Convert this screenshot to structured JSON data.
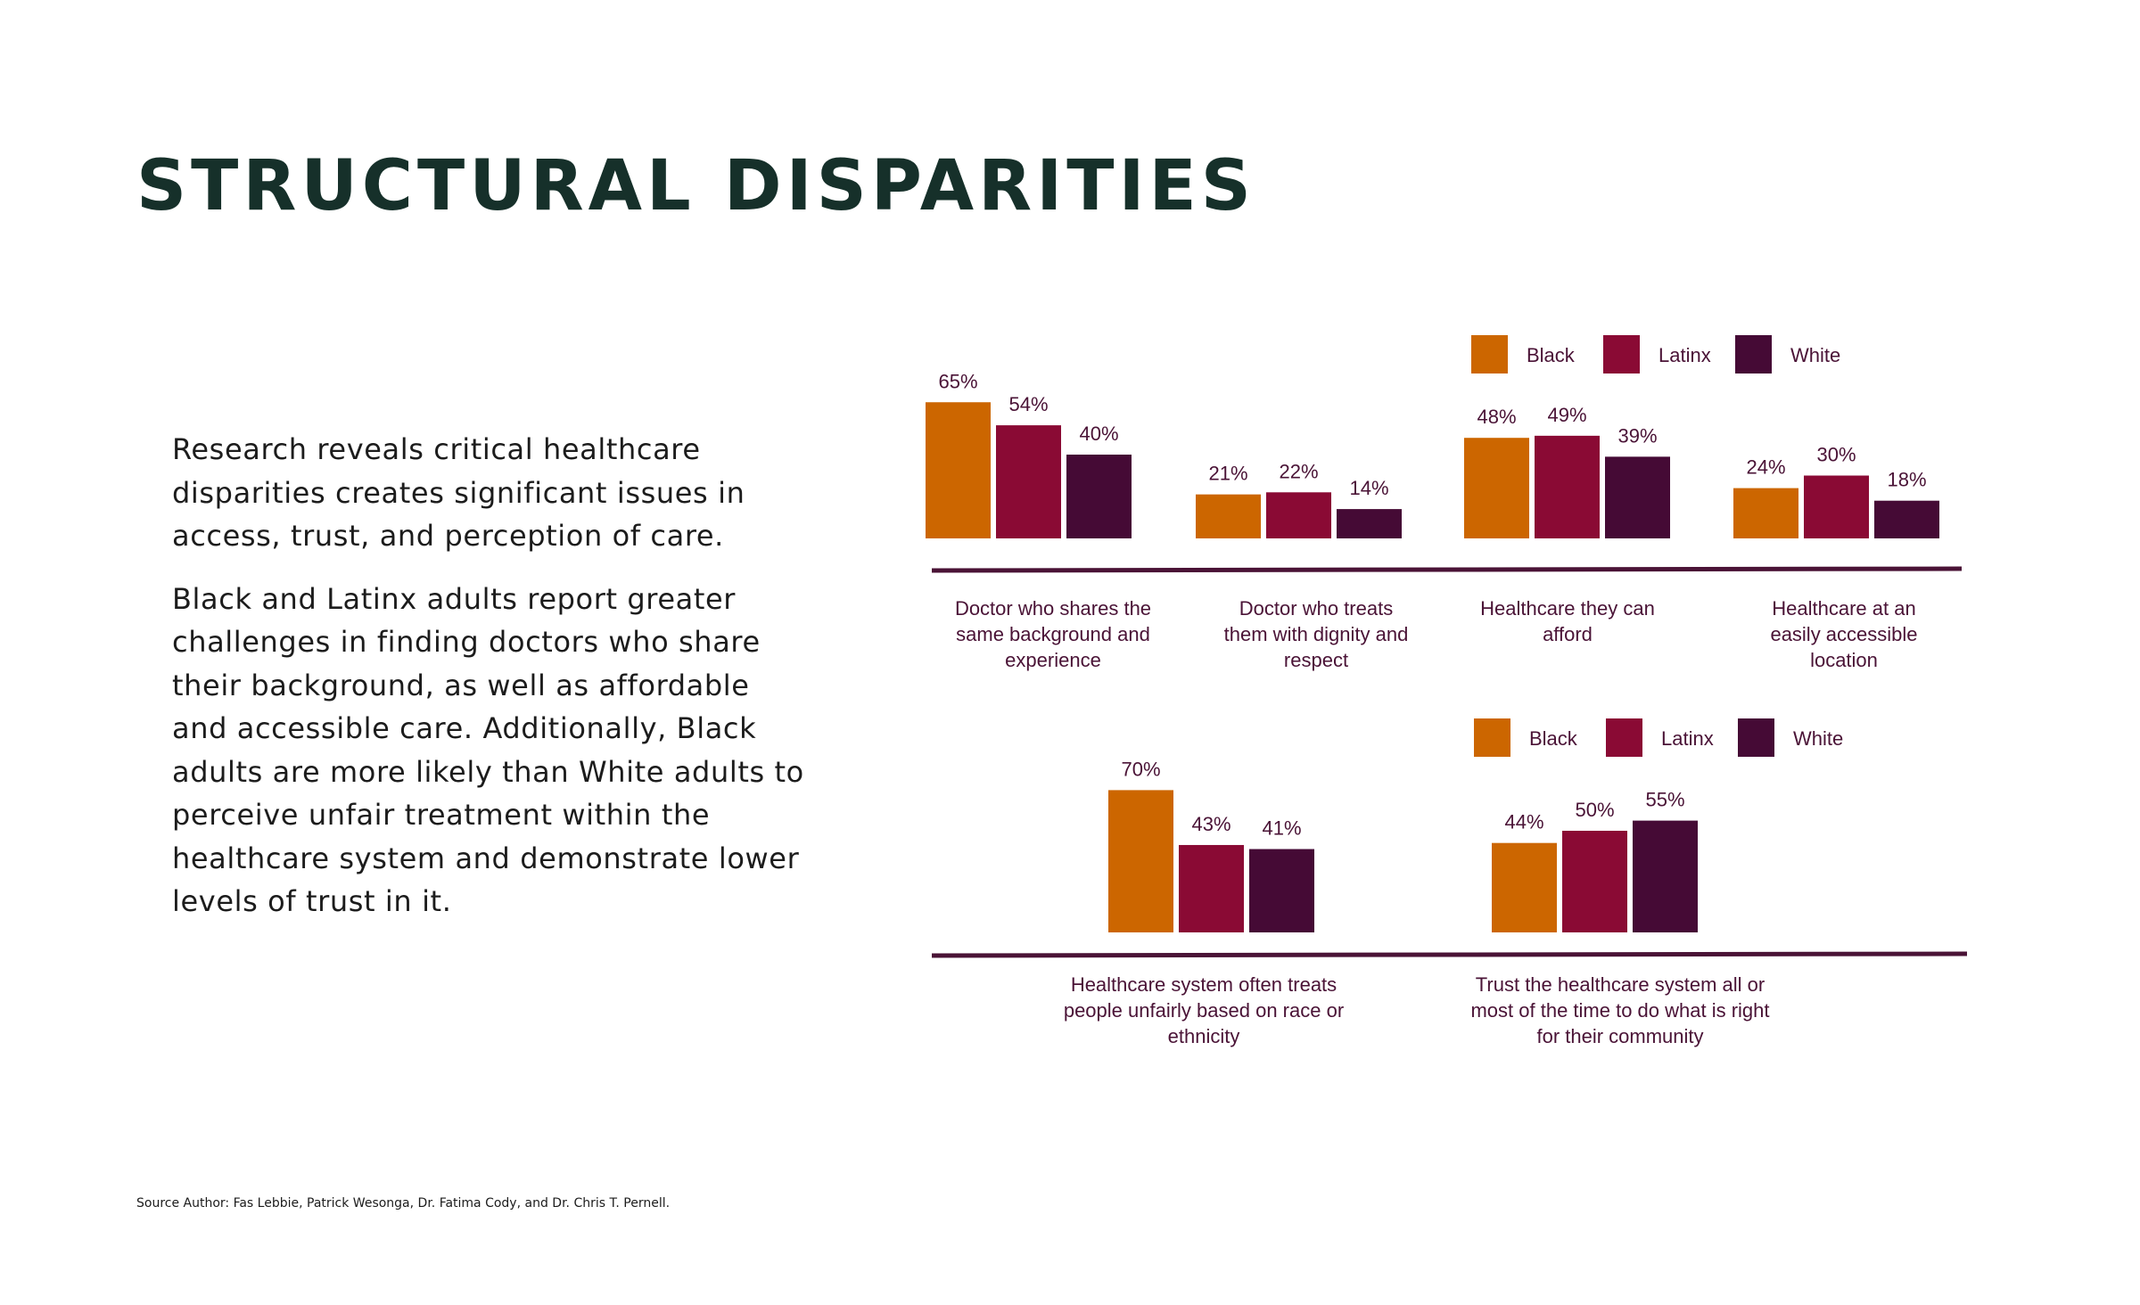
{
  "page": {
    "title": "STRUCTURAL DISPARITIES",
    "paragraphs": [
      "Research reveals critical healthcare disparities creates significant issues in access, trust, and perception of care.",
      "Black and Latinx adults report greater challenges in finding doctors who share their background, as well as affordable and accessible care. Additionally, Black adults are more likely than White adults to perceive unfair treatment within the healthcare system and demonstrate lower levels of trust in it."
    ],
    "source": "Source Author: Fas Lebbie, Patrick Wesonga, Dr. Fatima Cody, and Dr. Chris T. Pernell."
  },
  "colors": {
    "Black": "#cc6600",
    "Latinx": "#8a0a34",
    "White": "#450a35",
    "axis": "#4a1336"
  },
  "chart_data": [
    {
      "type": "bar",
      "legend": "top-right",
      "categories": [
        [
          "Doctor who shares the",
          "same background  and",
          "experience"
        ],
        [
          "Doctor who treats",
          "them with dignity and",
          "respect"
        ],
        [
          "Healthcare  they can",
          "afford"
        ],
        [
          "Healthcare  at an",
          "easily accessible",
          "location"
        ]
      ],
      "series": [
        {
          "name": "Black",
          "values": [
            65,
            21,
            48,
            24
          ],
          "labels": [
            "65%",
            "21%",
            "48%",
            "24%"
          ]
        },
        {
          "name": "Latinx",
          "values": [
            54,
            22,
            49,
            30
          ],
          "labels": [
            "54%",
            "22%",
            "49%",
            "30%"
          ]
        },
        {
          "name": "White",
          "values": [
            40,
            14,
            39,
            18
          ],
          "labels": [
            "40%",
            "14%",
            "39%",
            "18%"
          ]
        }
      ]
    },
    {
      "type": "bar",
      "legend": "top-right",
      "categories": [
        [
          "Healthcare  system often treats",
          "people unfairly  based on race or",
          "ethnicity"
        ],
        [
          "Trust the healthcare  system all or",
          "most of the time to do what  is right",
          "for their community"
        ]
      ],
      "series": [
        {
          "name": "Black",
          "values": [
            70,
            44
          ],
          "labels": [
            "70%",
            "44%"
          ]
        },
        {
          "name": "Latinx",
          "values": [
            43,
            50
          ],
          "labels": [
            "43%",
            "50%"
          ]
        },
        {
          "name": "White",
          "values": [
            41,
            55
          ],
          "labels": [
            "41%",
            "55%"
          ]
        }
      ]
    }
  ]
}
